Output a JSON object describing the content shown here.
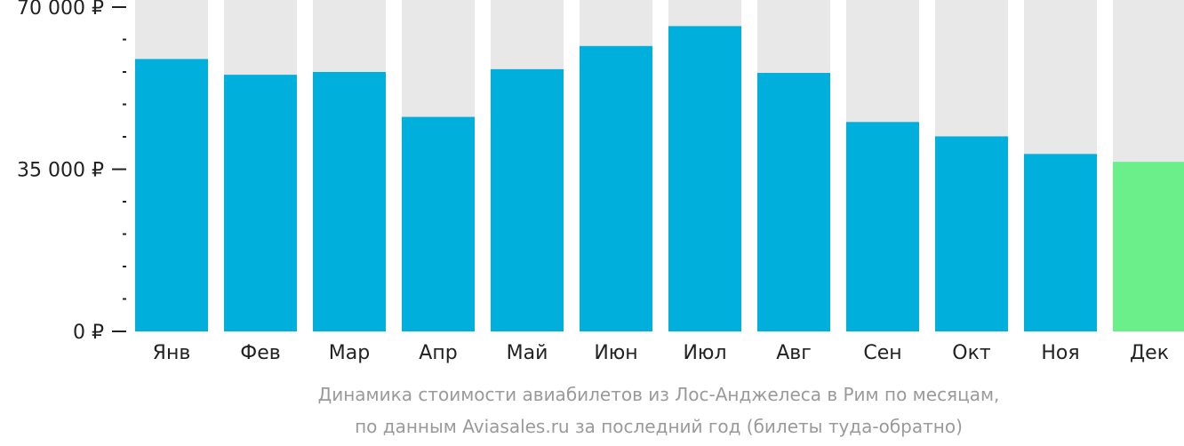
{
  "chart_data": {
    "type": "bar",
    "categories": [
      "Янв",
      "Фев",
      "Мар",
      "Апр",
      "Май",
      "Июн",
      "Июл",
      "Авг",
      "Сен",
      "Окт",
      "Ноя",
      "Дек"
    ],
    "values": [
      58800,
      55400,
      56000,
      46300,
      56600,
      61600,
      65900,
      55800,
      45200,
      42100,
      38300,
      36600
    ],
    "ylim": [
      0,
      70000
    ],
    "yticks": [
      {
        "value": 0,
        "label": "0 ₽"
      },
      {
        "value": 35000,
        "label": "35 000 ₽"
      },
      {
        "value": 70000,
        "label": "70 000 ₽"
      }
    ],
    "minor_tick_step": 7000,
    "highlight_index": 11,
    "title": "",
    "xlabel": "",
    "ylabel": "",
    "grid": false,
    "colors": {
      "bar": "#00afdc",
      "highlight": "#6aef8a",
      "background_bar": "#e8e8e8",
      "axis": "#222222"
    }
  },
  "caption": {
    "line1": "Динамика стоимости авиабилетов из Лос-Анджелеса в Рим по месяцам,",
    "line2": "по данным Aviasales.ru за последний год (билеты туда-обратно)"
  }
}
